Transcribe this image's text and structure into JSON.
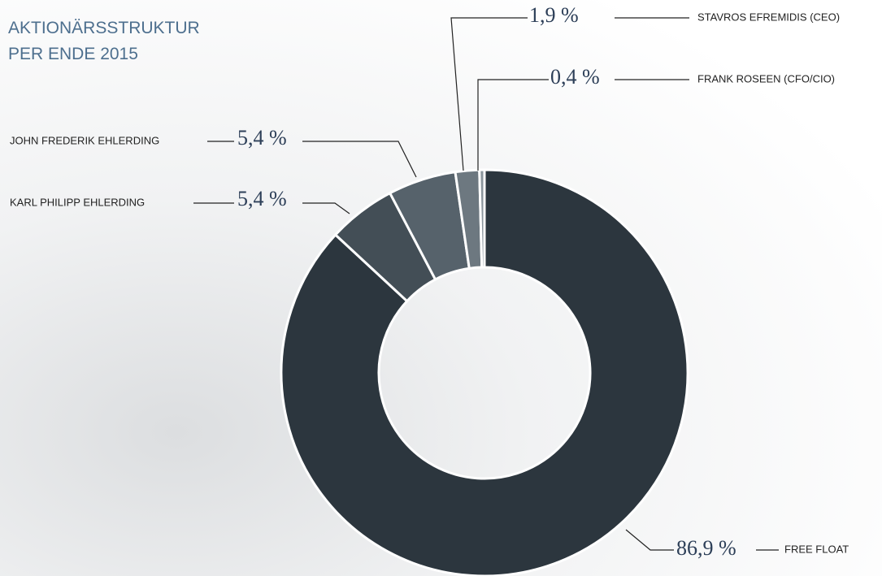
{
  "chart_data": {
    "type": "pie",
    "donut": true,
    "title": [
      "AKTIONÄRSSTRUKTUR",
      "PER ENDE 2015"
    ],
    "categories": [
      "FREE FLOAT",
      "KARL PHILIPP EHLERDING",
      "JOHN FREDERIK EHLERDING",
      "STAVROS EFREMIDIS (CEO)",
      "FRANK ROSEEN (CFO/CIO)"
    ],
    "values": [
      86.9,
      5.4,
      5.4,
      1.9,
      0.4
    ],
    "value_labels": [
      "86,9 %",
      "5,4 %",
      "5,4 %",
      "1,9 %",
      "0,4 %"
    ],
    "colors": [
      "#2c363e",
      "#434e56",
      "#56626b",
      "#6d7880",
      "#8b959c"
    ]
  }
}
